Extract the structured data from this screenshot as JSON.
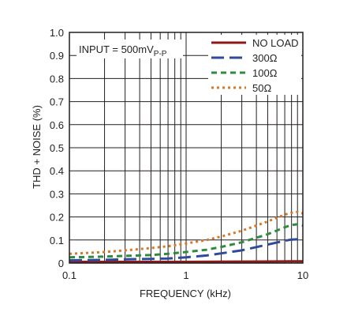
{
  "chart_data": {
    "type": "line",
    "xscale": "log",
    "xlim": [
      0.1,
      10
    ],
    "ylim": [
      0,
      1.0
    ],
    "grid": true,
    "legend_position": "top-right",
    "xlabel": "FREQUENCY (kHz)",
    "ylabel": "THD + NOISE (%)",
    "x_tick_labels": [
      "0.1",
      "1",
      "10"
    ],
    "x_tick_values": [
      0.1,
      1,
      10
    ],
    "y_tick_labels": [
      "0",
      "0.1",
      "0.2",
      "0.3",
      "0.4",
      "0.5",
      "0.6",
      "0.7",
      "0.8",
      "0.9",
      "1.0"
    ],
    "y_tick_values": [
      0,
      0.1,
      0.2,
      0.3,
      0.4,
      0.5,
      0.6,
      0.7,
      0.8,
      0.9,
      1.0
    ],
    "annotation": {
      "main": "INPUT = 500mV",
      "subscript": "P-P"
    },
    "series": [
      {
        "name": "NO LOAD",
        "color": "#8b1a1a",
        "dash": "solid",
        "x": [
          0.1,
          0.2,
          0.5,
          1,
          2,
          5,
          8,
          10
        ],
        "y": [
          0.005,
          0.005,
          0.005,
          0.005,
          0.006,
          0.007,
          0.008,
          0.008
        ]
      },
      {
        "name": "300Ω",
        "color": "#2e4b9b",
        "dash": "longdash",
        "x": [
          0.1,
          0.2,
          0.3,
          0.5,
          0.7,
          1,
          1.5,
          2,
          3,
          5,
          7,
          8,
          9,
          10
        ],
        "y": [
          0.012,
          0.014,
          0.016,
          0.018,
          0.02,
          0.025,
          0.033,
          0.042,
          0.055,
          0.08,
          0.097,
          0.102,
          0.103,
          0.1
        ]
      },
      {
        "name": "100Ω",
        "color": "#2e8b3e",
        "dash": "dash",
        "x": [
          0.1,
          0.2,
          0.3,
          0.5,
          0.7,
          1,
          1.5,
          2,
          3,
          5,
          7,
          8,
          9,
          10
        ],
        "y": [
          0.025,
          0.028,
          0.031,
          0.035,
          0.04,
          0.048,
          0.058,
          0.07,
          0.09,
          0.125,
          0.155,
          0.165,
          0.168,
          0.163
        ]
      },
      {
        "name": "50Ω",
        "color": "#d4782a",
        "dash": "dot",
        "x": [
          0.1,
          0.2,
          0.3,
          0.5,
          0.7,
          1,
          1.5,
          2,
          3,
          5,
          7,
          8,
          9,
          10
        ],
        "y": [
          0.04,
          0.048,
          0.055,
          0.065,
          0.073,
          0.085,
          0.1,
          0.115,
          0.14,
          0.18,
          0.21,
          0.218,
          0.222,
          0.215
        ]
      }
    ]
  }
}
